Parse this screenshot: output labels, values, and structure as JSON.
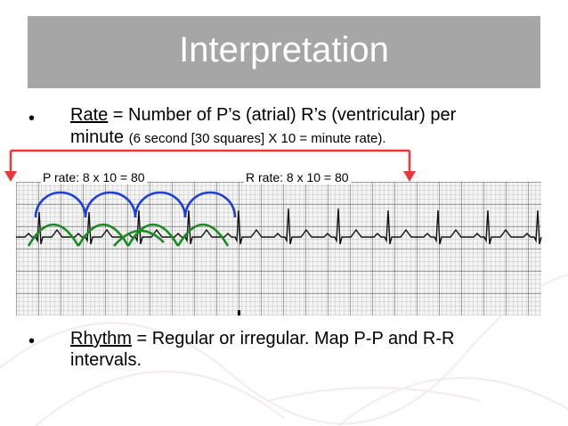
{
  "slide": {
    "title": "Interpretation",
    "colors": {
      "title_bg": "#a6a6a6",
      "arrow": "#e8383b",
      "p_arcs": "#1e3fd6",
      "r_arcs": "#1a8a22"
    }
  },
  "bullets": [
    {
      "marker": "•",
      "term": "Rate",
      "line1_rest": " = Number of P’s (atrial) R’s (ventricular) per",
      "line2_main": "minute ",
      "line2_small": "(6 second [30 squares] X 10 = minute rate)."
    },
    {
      "marker": "•",
      "term": "Rhythm",
      "line1_rest": " = Regular or irregular. Map P-P and R-R",
      "line2_main": "intervals."
    }
  ],
  "ecg": {
    "p_rate_label": "P rate: 8 x 10 = 80",
    "r_rate_label": "R rate: 8 x 10 = 80"
  }
}
